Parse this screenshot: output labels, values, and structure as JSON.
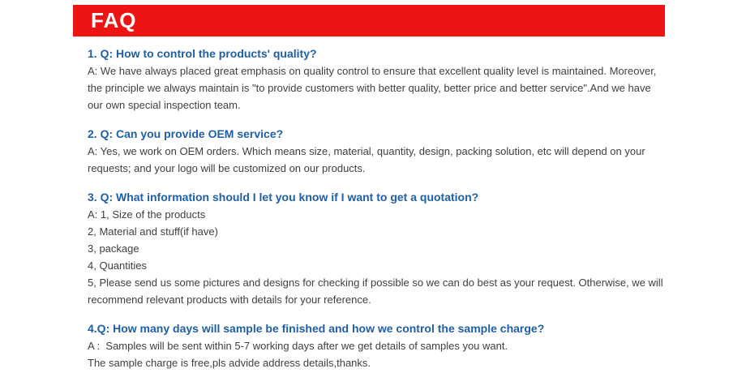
{
  "colors": {
    "page_bg": "#ffffff",
    "header_bg": "#ee1413",
    "header_text": "#ffffff",
    "question": "#1e5fa9",
    "answer": "#3f3f3f"
  },
  "header": {
    "title": "FAQ"
  },
  "faq": {
    "items": [
      {
        "question": "1. Q: How to control the products' quality?",
        "answer_lines": [
          "A: We have always placed great emphasis on quality control to ensure that excellent quality level is maintained. Moreover,",
          "the principle we always maintain is \"to provide customers with better quality, better price and better service\".And we have",
          "our own special inspection team."
        ]
      },
      {
        "question": "2. Q: Can you provide OEM service?",
        "answer_lines": [
          "A: Yes, we work on OEM orders. Which means size, material, quantity, design, packing solution, etc will depend on your",
          "requests; and your logo will be customized on our products."
        ]
      },
      {
        "question": "3. Q: What information should I let you know if I want to get a quotation?",
        "answer_lines": [
          "A: 1, Size of the products",
          "2, Material and stuff(if have)",
          "3, package",
          "4, Quantities",
          "5, Please send us some pictures and designs for checking if possible so we can do best as your request. Otherwise, we will",
          "recommend relevant products with details for your reference."
        ]
      },
      {
        "question": "4.Q: How many days will sample be finished and how we control the sample charge?",
        "answer_lines": [
          "A :  Samples will be sent within 5-7 working days after we get details of samples you want.",
          "The sample charge is free,pls advide address details,thanks."
        ]
      }
    ]
  }
}
